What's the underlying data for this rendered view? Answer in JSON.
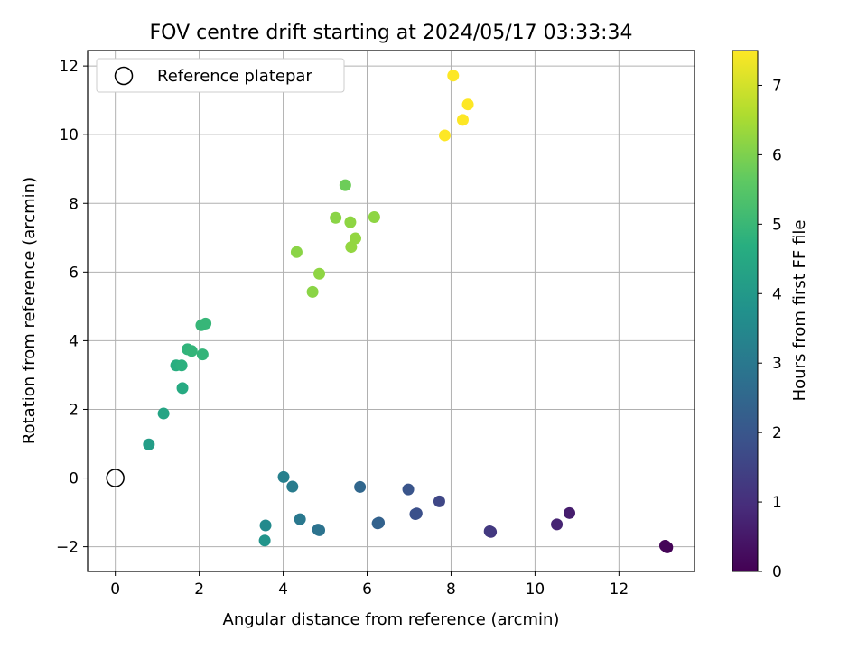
{
  "chart_data": {
    "type": "scatter",
    "title": "FOV centre drift starting at 2024/05/17 03:33:34",
    "xlabel": "Angular distance from reference (arcmin)",
    "ylabel": "Rotation from reference (arcmin)",
    "xlim": [
      -0.66,
      13.8
    ],
    "ylim": [
      -2.72,
      12.45
    ],
    "xticks": [
      0,
      2,
      4,
      6,
      8,
      10,
      12
    ],
    "yticks": [
      -2,
      0,
      2,
      4,
      6,
      8,
      10,
      12
    ],
    "xtick_labels": [
      "0",
      "2",
      "4",
      "6",
      "8",
      "10",
      "12"
    ],
    "ytick_labels": [
      "−2",
      "0",
      "2",
      "4",
      "6",
      "8",
      "10",
      "12"
    ],
    "grid": true,
    "legend": {
      "placement": "upper-left",
      "entries": [
        "Reference platepar"
      ]
    },
    "reference_point": {
      "x": 0,
      "y": 0
    },
    "colorbar": {
      "label": "Hours from first FF file",
      "colormap": "viridis",
      "range": [
        0,
        7.5
      ],
      "ticks": [
        0,
        1,
        2,
        3,
        4,
        5,
        6,
        7
      ],
      "tick_labels": [
        "0",
        "1",
        "2",
        "3",
        "4",
        "5",
        "6",
        "7"
      ]
    },
    "points": [
      {
        "x": 13.15,
        "y": -2.02,
        "c": 0.05
      },
      {
        "x": 13.1,
        "y": -1.97,
        "c": 0.1
      },
      {
        "x": 10.82,
        "y": -1.02,
        "c": 0.6
      },
      {
        "x": 10.52,
        "y": -1.35,
        "c": 0.75
      },
      {
        "x": 8.95,
        "y": -1.57,
        "c": 1.2
      },
      {
        "x": 8.92,
        "y": -1.55,
        "c": 1.25
      },
      {
        "x": 7.72,
        "y": -0.68,
        "c": 1.6
      },
      {
        "x": 7.18,
        "y": -1.03,
        "c": 1.8
      },
      {
        "x": 7.15,
        "y": -1.05,
        "c": 1.85
      },
      {
        "x": 6.98,
        "y": -0.33,
        "c": 1.95
      },
      {
        "x": 6.28,
        "y": -1.3,
        "c": 2.3
      },
      {
        "x": 6.25,
        "y": -1.32,
        "c": 2.35
      },
      {
        "x": 5.83,
        "y": -0.26,
        "c": 2.5
      },
      {
        "x": 4.83,
        "y": -1.5,
        "c": 2.8
      },
      {
        "x": 4.86,
        "y": -1.52,
        "c": 2.85
      },
      {
        "x": 4.4,
        "y": -1.2,
        "c": 3.0
      },
      {
        "x": 4.22,
        "y": -0.25,
        "c": 3.1
      },
      {
        "x": 4.01,
        "y": 0.03,
        "c": 3.25
      },
      {
        "x": 3.58,
        "y": -1.38,
        "c": 3.55
      },
      {
        "x": 3.56,
        "y": -1.82,
        "c": 3.85
      },
      {
        "x": 0.8,
        "y": 0.98,
        "c": 4.15
      },
      {
        "x": 1.15,
        "y": 1.88,
        "c": 4.35
      },
      {
        "x": 1.6,
        "y": 2.62,
        "c": 4.55
      },
      {
        "x": 1.45,
        "y": 3.28,
        "c": 4.7
      },
      {
        "x": 1.58,
        "y": 3.28,
        "c": 4.75
      },
      {
        "x": 1.72,
        "y": 3.75,
        "c": 4.85
      },
      {
        "x": 1.82,
        "y": 3.7,
        "c": 4.9
      },
      {
        "x": 2.08,
        "y": 3.6,
        "c": 4.9
      },
      {
        "x": 2.05,
        "y": 4.45,
        "c": 4.95
      },
      {
        "x": 2.15,
        "y": 4.5,
        "c": 4.95
      },
      {
        "x": 4.7,
        "y": 5.42,
        "c": 6.15
      },
      {
        "x": 4.86,
        "y": 5.95,
        "c": 6.2
      },
      {
        "x": 4.32,
        "y": 6.58,
        "c": 6.15
      },
      {
        "x": 5.62,
        "y": 6.73,
        "c": 6.25
      },
      {
        "x": 5.72,
        "y": 6.98,
        "c": 6.25
      },
      {
        "x": 5.6,
        "y": 7.45,
        "c": 6.2
      },
      {
        "x": 5.25,
        "y": 7.58,
        "c": 6.15
      },
      {
        "x": 6.17,
        "y": 7.6,
        "c": 6.2
      },
      {
        "x": 5.48,
        "y": 8.53,
        "c": 5.8
      },
      {
        "x": 7.85,
        "y": 9.98,
        "c": 7.5
      },
      {
        "x": 8.28,
        "y": 10.43,
        "c": 7.5
      },
      {
        "x": 8.4,
        "y": 10.88,
        "c": 7.5
      },
      {
        "x": 8.05,
        "y": 11.72,
        "c": 7.5
      }
    ]
  }
}
